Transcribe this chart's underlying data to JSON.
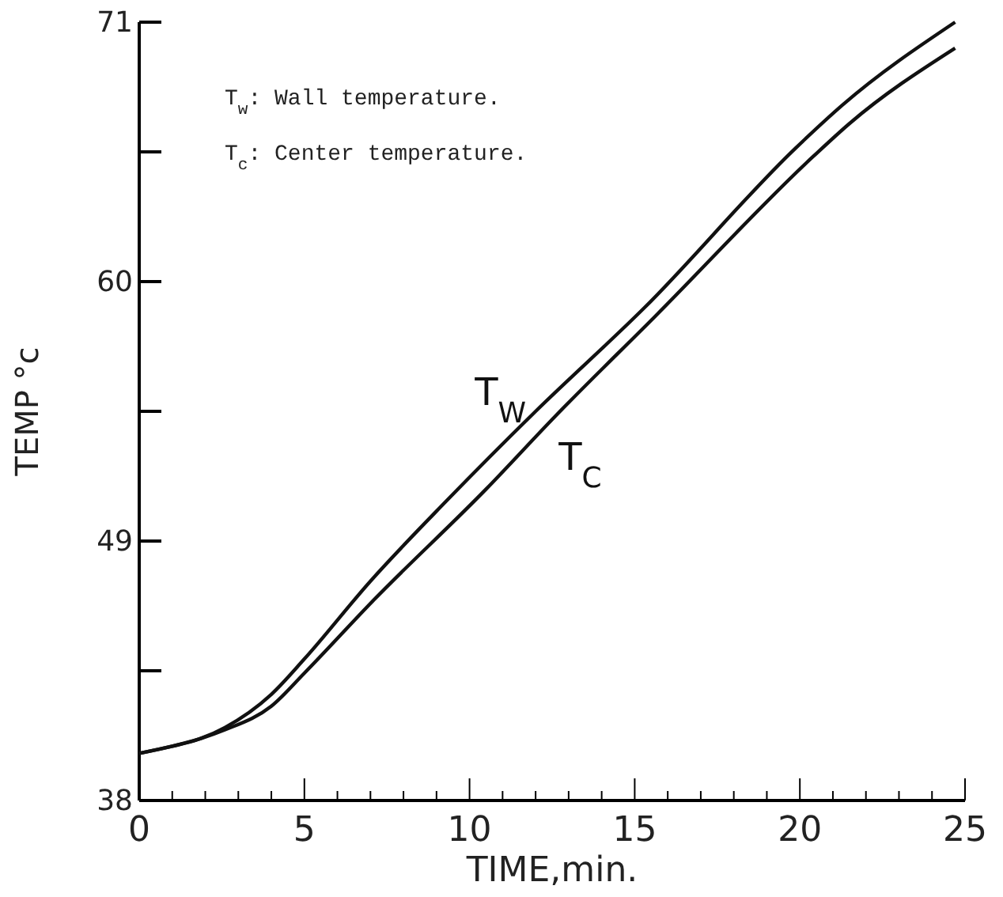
{
  "chart_data": {
    "type": "line",
    "xlabel": "TIME,min.",
    "ylabel": "TEMP °c",
    "xlim": [
      0,
      25
    ],
    "ylim": [
      38,
      71
    ],
    "xticks": [
      0,
      {
        "value": 1,
        "label": null
      },
      {
        "value": 2,
        "label": null
      },
      {
        "value": 3,
        "label": null
      },
      {
        "value": 4,
        "label": null
      },
      5,
      {
        "value": 6,
        "label": null
      },
      {
        "value": 7,
        "label": null
      },
      {
        "value": 8,
        "label": null
      },
      {
        "value": 9,
        "label": null
      },
      10,
      {
        "value": 11,
        "label": null
      },
      {
        "value": 12,
        "label": null
      },
      {
        "value": 13,
        "label": null
      },
      {
        "value": 14,
        "label": null
      },
      15,
      {
        "value": 16,
        "label": null
      },
      {
        "value": 17,
        "label": null
      },
      {
        "value": 18,
        "label": null
      },
      {
        "value": 19,
        "label": null
      },
      20,
      {
        "value": 21,
        "label": null
      },
      {
        "value": 22,
        "label": null
      },
      {
        "value": 23,
        "label": null
      },
      {
        "value": 24,
        "label": null
      },
      25
    ],
    "yticks": [
      38,
      {
        "value": 43.5,
        "label": null
      },
      49,
      {
        "value": 54.5,
        "label": null
      },
      60,
      {
        "value": 65.5,
        "label": null
      },
      71
    ],
    "grid": false,
    "legend": false,
    "marker": "none",
    "line_style": "solid",
    "annotations": [
      "T$_{w}$: Wall temperature.",
      "T$_{c}$: Center temperature."
    ],
    "series": [
      {
        "name": "T$_{W}$",
        "color": "#111111",
        "x": [
          0,
          1,
          1.8,
          2.6,
          4,
          5,
          7,
          9.3,
          12,
          15.3,
          19.9,
          21.3,
          24.7
        ],
        "values": [
          40.0,
          40.3,
          40.6,
          41.1,
          42.5,
          44.0,
          47.3,
          50.7,
          54.5,
          58.9,
          65.7,
          67.5,
          71.0
        ]
      },
      {
        "name": "T$_{C}$",
        "color": "#111111",
        "x": [
          0,
          1,
          1.8,
          2.6,
          4,
          5,
          7.1,
          10.5,
          12.6,
          15.6,
          20.4,
          21.5,
          24.7
        ],
        "values": [
          40.0,
          40.3,
          40.6,
          41.0,
          42.0,
          43.4,
          46.5,
          51.2,
          54.3,
          58.5,
          65.3,
          66.7,
          69.9
        ]
      }
    ]
  }
}
